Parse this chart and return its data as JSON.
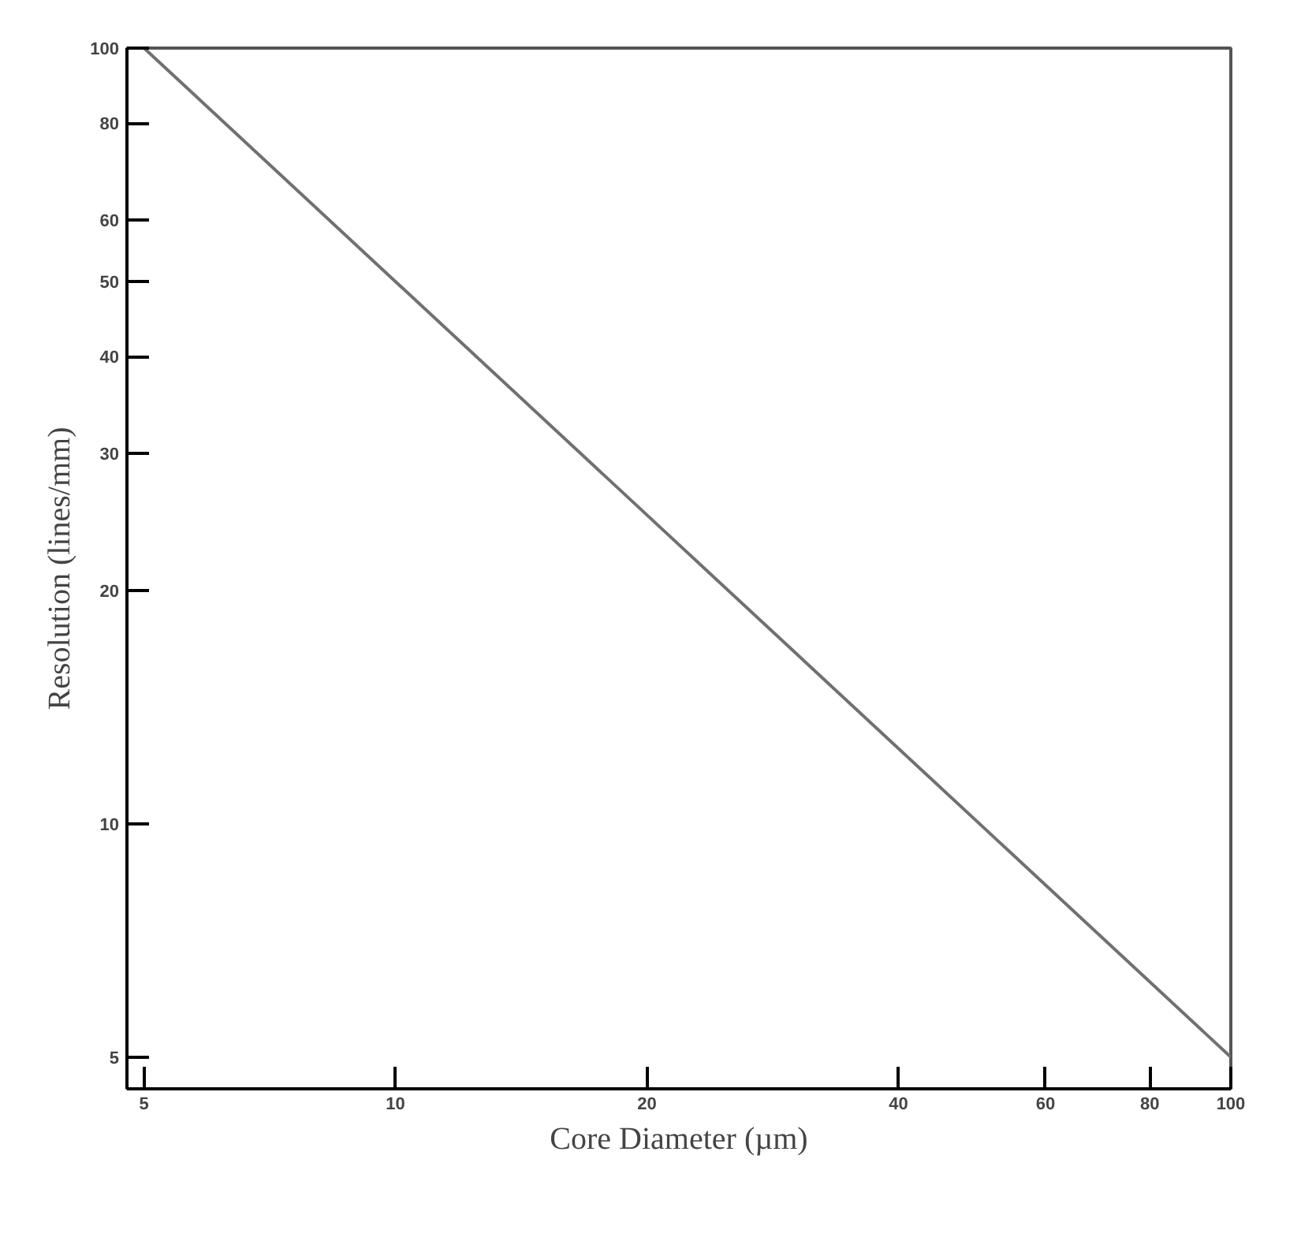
{
  "chart_data": {
    "type": "line",
    "xlabel": "Core Diameter (µm)",
    "ylabel": "Resolution (lines/mm)",
    "x": [
      5,
      100
    ],
    "series": [
      {
        "color": "#707070",
        "values": [
          100,
          5
        ]
      }
    ],
    "xlim": [
      4.77,
      100
    ],
    "ylim": [
      4.55,
      100
    ],
    "xticks": [
      5,
      10,
      20,
      40,
      60,
      80,
      100
    ],
    "yticks": [
      5,
      10,
      20,
      30,
      40,
      50,
      60,
      80,
      100
    ],
    "log": "xy",
    "grid": false,
    "marker": "none",
    "line_style": "solid"
  }
}
